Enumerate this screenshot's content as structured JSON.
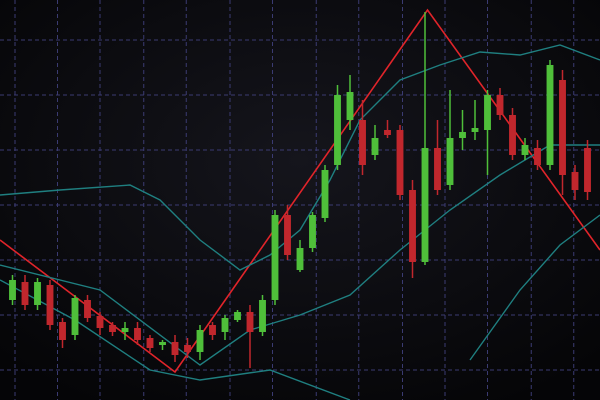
{
  "chart_data": {
    "type": "candlestick",
    "xlim": [
      0,
      48
    ],
    "ylim": [
      0,
      400
    ],
    "xticks": [
      1.2,
      4.6,
      8.0,
      11.5,
      14.9,
      18.4,
      21.8,
      25.3,
      28.7,
      32.2,
      35.6,
      39.0,
      42.5,
      45.9
    ],
    "yticks": [
      30,
      85,
      140,
      195,
      250,
      305,
      360
    ],
    "grid": true,
    "grid_color": "#3b3b72",
    "up_color": "#4fbf3a",
    "down_color": "#c1272d",
    "x": [
      1,
      2,
      3,
      4,
      5,
      6,
      7,
      8,
      9,
      10,
      11,
      12,
      13,
      14,
      15,
      16,
      17,
      18,
      19,
      20,
      21,
      22,
      23,
      24,
      25,
      26,
      27,
      28,
      29,
      30,
      31,
      32,
      33,
      34,
      35,
      36,
      37,
      38,
      39,
      40,
      41,
      42,
      43,
      44,
      45,
      46,
      47
    ],
    "open": [
      100,
      118,
      95,
      115,
      78,
      65,
      100,
      84,
      75,
      68,
      72,
      62,
      55,
      58,
      55,
      48,
      75,
      68,
      80,
      88,
      68,
      100,
      185,
      130,
      152,
      182,
      235,
      280,
      280,
      245,
      270,
      270,
      210,
      138,
      252,
      215,
      262,
      268,
      270,
      305,
      285,
      245,
      252,
      235,
      320,
      228,
      252
    ],
    "close": [
      120,
      95,
      118,
      75,
      60,
      102,
      82,
      72,
      68,
      72,
      60,
      52,
      58,
      45,
      48,
      70,
      65,
      82,
      88,
      68,
      100,
      185,
      145,
      152,
      185,
      230,
      305,
      308,
      235,
      262,
      265,
      205,
      138,
      252,
      210,
      262,
      268,
      272,
      305,
      285,
      245,
      255,
      235,
      335,
      225,
      210,
      208
    ],
    "high": [
      125,
      125,
      122,
      120,
      82,
      105,
      105,
      88,
      78,
      78,
      78,
      65,
      60,
      65,
      62,
      75,
      78,
      85,
      90,
      95,
      105,
      190,
      195,
      160,
      188,
      235,
      315,
      325,
      300,
      275,
      280,
      275,
      220,
      388,
      280,
      310,
      290,
      300,
      310,
      312,
      292,
      262,
      260,
      340,
      330,
      235,
      260
    ],
    "low": [
      95,
      90,
      90,
      70,
      52,
      60,
      78,
      65,
      64,
      60,
      55,
      48,
      50,
      38,
      42,
      40,
      60,
      60,
      78,
      32,
      64,
      95,
      140,
      128,
      148,
      178,
      230,
      270,
      225,
      240,
      262,
      200,
      122,
      135,
      205,
      210,
      250,
      260,
      225,
      280,
      240,
      240,
      230,
      230,
      205,
      200,
      200
    ],
    "lines": [
      {
        "color": "#e0242a",
        "x": [
          0,
          14,
          34.2,
          48
        ],
        "values": [
          160,
          28,
          390,
          150
        ]
      },
      {
        "color": "#1f7f80",
        "x": [
          0,
          4.8,
          10.4,
          12.8,
          16,
          19.2,
          21.6,
          24,
          26.4,
          28.8,
          32,
          35.2,
          38.4,
          41.6,
          44.8,
          48
        ],
        "values": [
          205,
          210,
          215,
          200,
          160,
          130,
          145,
          170,
          220,
          280,
          320,
          335,
          348,
          345,
          355,
          340
        ]
      },
      {
        "color": "#1f7f80",
        "x": [
          0,
          8,
          16,
          20,
          24,
          28,
          32,
          36,
          40,
          44,
          48
        ],
        "values": [
          135,
          110,
          35,
          70,
          85,
          105,
          150,
          190,
          225,
          255,
          255
        ]
      },
      {
        "color": "#1f7f80",
        "x": [
          0,
          6,
          12,
          16,
          21.6,
          28,
          32,
          37.6,
          41.6,
          44.8,
          48
        ],
        "values": [
          120,
          80,
          30,
          20,
          30,
          0,
          null,
          40,
          110,
          155,
          185
        ]
      }
    ]
  }
}
